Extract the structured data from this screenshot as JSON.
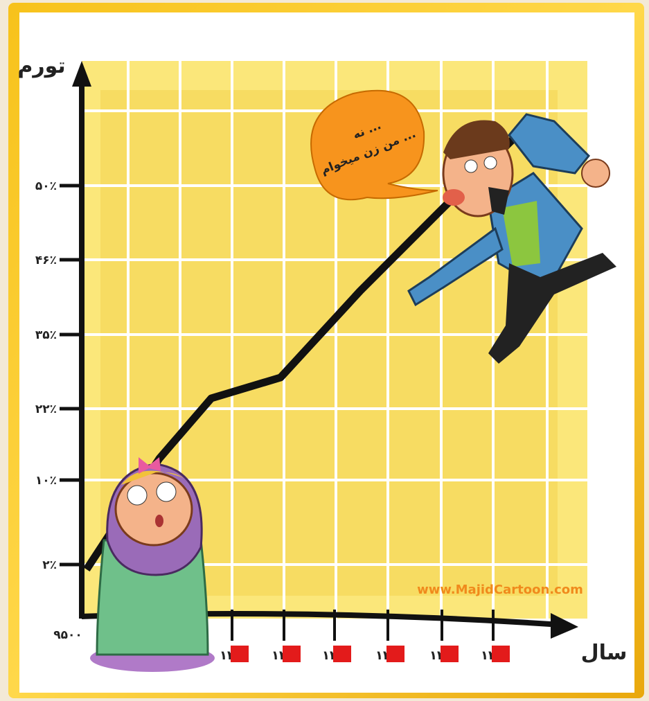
{
  "y_axis": {
    "title": "تورم",
    "ticks": [
      "۵۰٪",
      "۴۶٪",
      "۳۵٪",
      "۲۲٪",
      "۱۰٪",
      "۲٪"
    ]
  },
  "x_axis": {
    "title": "سال",
    "origin": "۹۵۰۰",
    "ticks": [
      "۱۳",
      "۱۳",
      "۱۳",
      "۱۳",
      "۱۳",
      "۱۳"
    ]
  },
  "speech_bubble": {
    "lines": [
      "نه ...",
      "من زن میخوام ..."
    ]
  },
  "watermark": "www.MajidCartoon.com"
}
